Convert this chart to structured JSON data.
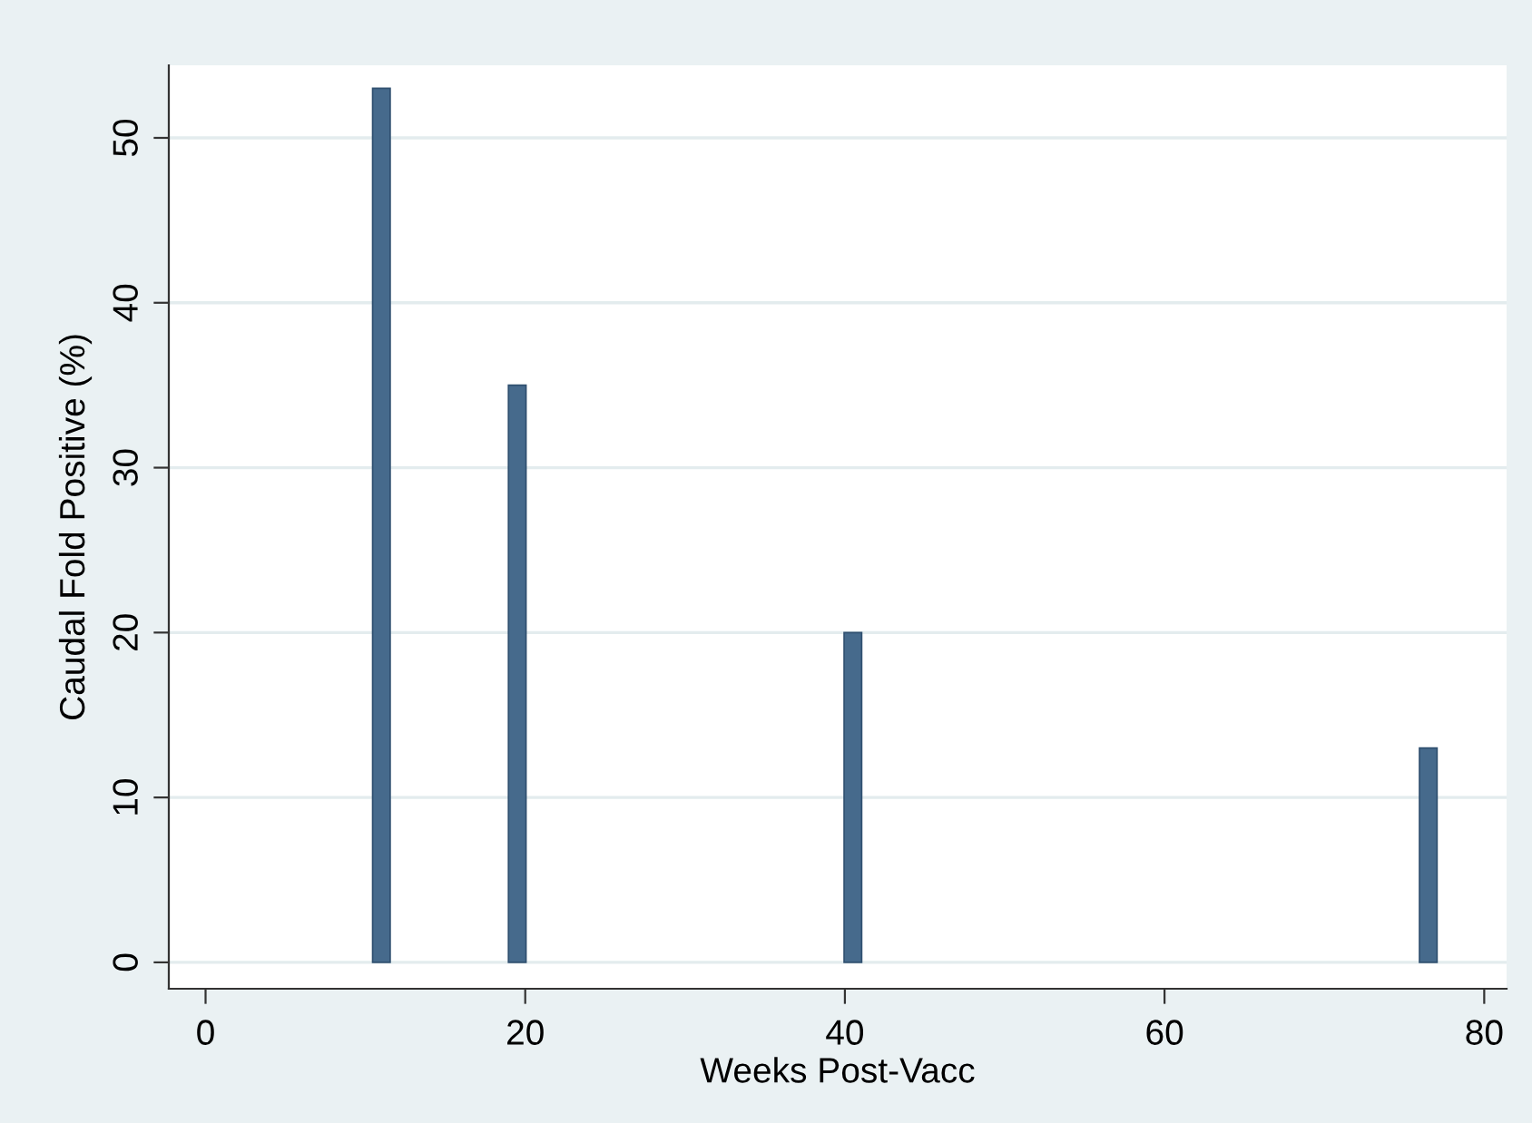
{
  "chart_data": {
    "type": "bar",
    "xlabel": "Weeks Post-Vacc",
    "ylabel": "Caudal Fold Positive (%)",
    "x": [
      11,
      19.5,
      40.5,
      76.5
    ],
    "values": [
      53,
      35,
      20,
      13
    ],
    "color": "#466a8c",
    "xlim": [
      -2.3,
      81.4
    ],
    "ylim": [
      -1.6,
      54.4
    ],
    "xticks": [
      0,
      20,
      40,
      60,
      80
    ],
    "yticks": [
      0,
      10,
      20,
      30,
      40,
      50
    ],
    "grid": "y"
  }
}
